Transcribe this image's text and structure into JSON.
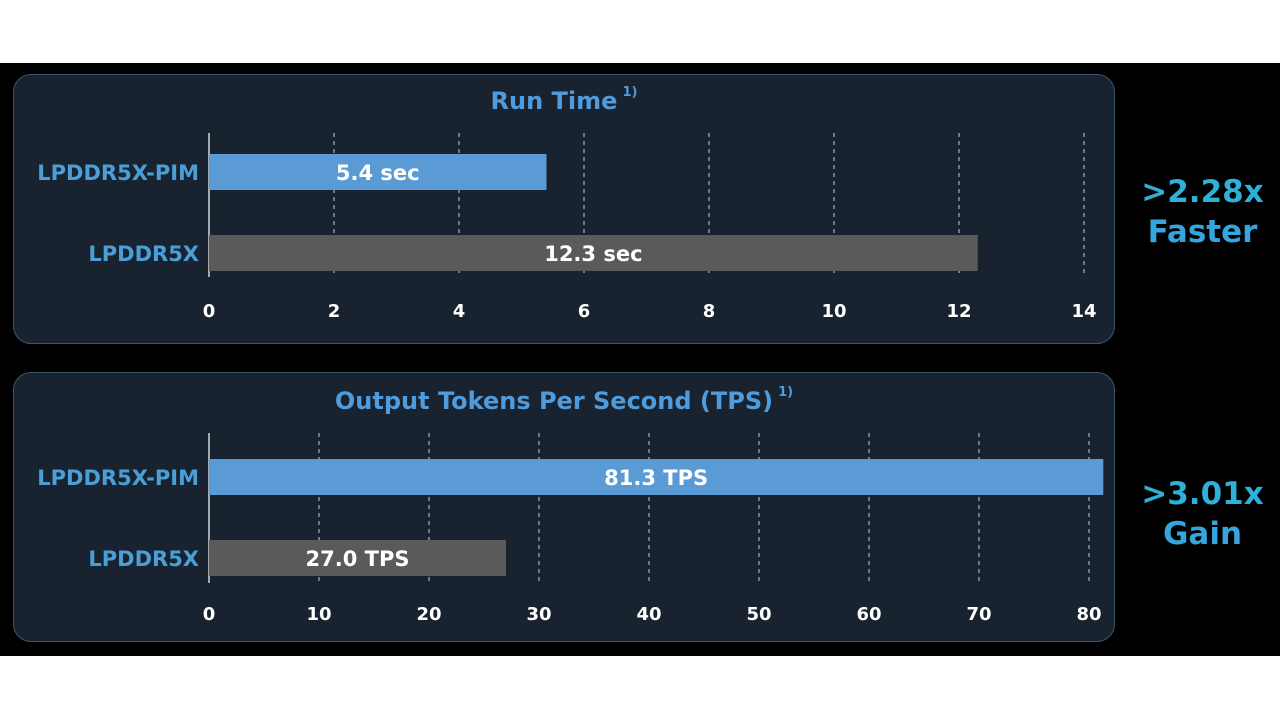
{
  "chart_data": [
    {
      "type": "bar",
      "orientation": "horizontal",
      "title": "Run Time",
      "title_note": "1)",
      "categories": [
        "LPDDR5X-PIM",
        "LPDDR5X"
      ],
      "values": [
        5.4,
        12.3
      ],
      "data_labels": [
        "5.4 sec",
        "12.3 sec"
      ],
      "xlim": [
        0,
        14
      ],
      "xticks": [
        "0",
        "2",
        "4",
        "6",
        "8",
        "10",
        "12",
        "14"
      ],
      "grid": "vertical dashed",
      "colors": [
        "#5b9bd5",
        "#5a5a5a"
      ]
    },
    {
      "type": "bar",
      "orientation": "horizontal",
      "title": "Output Tokens Per Second (TPS)",
      "title_note": "1)",
      "categories": [
        "LPDDR5X-PIM",
        "LPDDR5X"
      ],
      "values": [
        81.3,
        27.0
      ],
      "data_labels": [
        "81.3 TPS",
        "27.0 TPS"
      ],
      "xlim": [
        0,
        80
      ],
      "xticks": [
        "0",
        "10",
        "20",
        "30",
        "40",
        "50",
        "60",
        "70",
        "80"
      ],
      "grid": "vertical dashed",
      "colors": [
        "#5b9bd5",
        "#5a5a5a"
      ]
    }
  ],
  "callouts": [
    {
      "line1": ">2.28x",
      "line2": "Faster"
    },
    {
      "line1": ">3.01x",
      "line2": "Gain"
    }
  ]
}
